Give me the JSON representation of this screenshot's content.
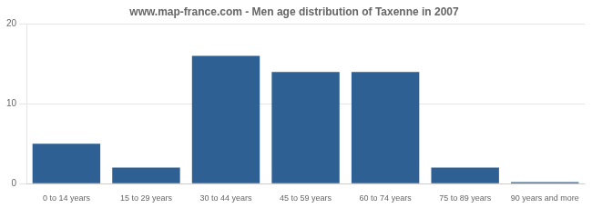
{
  "chart_data": {
    "type": "bar",
    "title": "www.map-france.com - Men age distribution of Taxenne in 2007",
    "categories": [
      "0 to 14 years",
      "15 to 29 years",
      "30 to 44 years",
      "45 to 59 years",
      "60 to 74 years",
      "75 to 89 years",
      "90 years and more"
    ],
    "values": [
      5,
      2,
      16,
      14,
      14,
      2,
      0.2
    ],
    "color": "#2e6093",
    "ylim": [
      0,
      20
    ],
    "yticks": [
      0,
      10,
      20
    ],
    "grid": true
  }
}
